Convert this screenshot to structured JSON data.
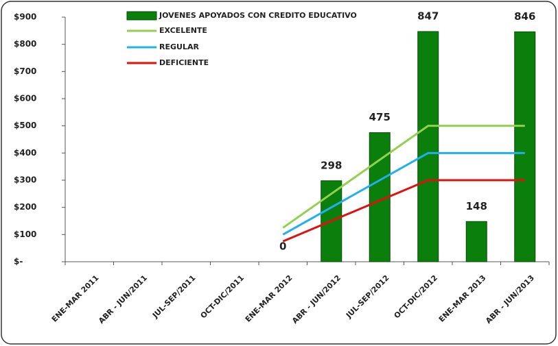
{
  "chart_data": {
    "type": "bar",
    "categories": [
      "ENE-MAR 2011",
      "ABR - JUN/2011",
      "JUL-SEP/2011",
      "OCT-DIC/2011",
      "ENE-MAR 2012",
      "ABR - JUN/2012",
      "JUL-SEP/2012",
      "OCT-DIC/2012",
      "ENE-MAR 2013",
      "ABR - JUN/2013"
    ],
    "series": [
      {
        "name": "JOVENES APOYADOS CON CREDITO EDUCATIVO",
        "type": "bar",
        "color": "#0b7f0b",
        "values": [
          null,
          null,
          null,
          null,
          0,
          298,
          475,
          847,
          148,
          846
        ]
      },
      {
        "name": "EXCELENTE",
        "type": "line",
        "color": "#92d050",
        "values": [
          null,
          null,
          null,
          null,
          125,
          250,
          375,
          500,
          500,
          500
        ]
      },
      {
        "name": "REGULAR",
        "type": "line",
        "color": "#1fb0f0",
        "values": [
          null,
          null,
          null,
          null,
          100,
          200,
          300,
          400,
          400,
          400
        ]
      },
      {
        "name": "DEFICIENTE",
        "type": "line",
        "color": "#e01010",
        "values": [
          null,
          null,
          null,
          null,
          75,
          150,
          225,
          300,
          300,
          300
        ]
      }
    ],
    "ylim": [
      0,
      900
    ],
    "yticks": [
      {
        "value": 0,
        "label": "$-"
      },
      {
        "value": 100,
        "label": "$100"
      },
      {
        "value": 200,
        "label": "$200"
      },
      {
        "value": 300,
        "label": "$300"
      },
      {
        "value": 400,
        "label": "$400"
      },
      {
        "value": 500,
        "label": "$500"
      },
      {
        "value": 600,
        "label": "$600"
      },
      {
        "value": 700,
        "label": "$700"
      },
      {
        "value": 800,
        "label": "$800"
      },
      {
        "value": 900,
        "label": "$900"
      }
    ],
    "legend": "top",
    "grid": false
  }
}
